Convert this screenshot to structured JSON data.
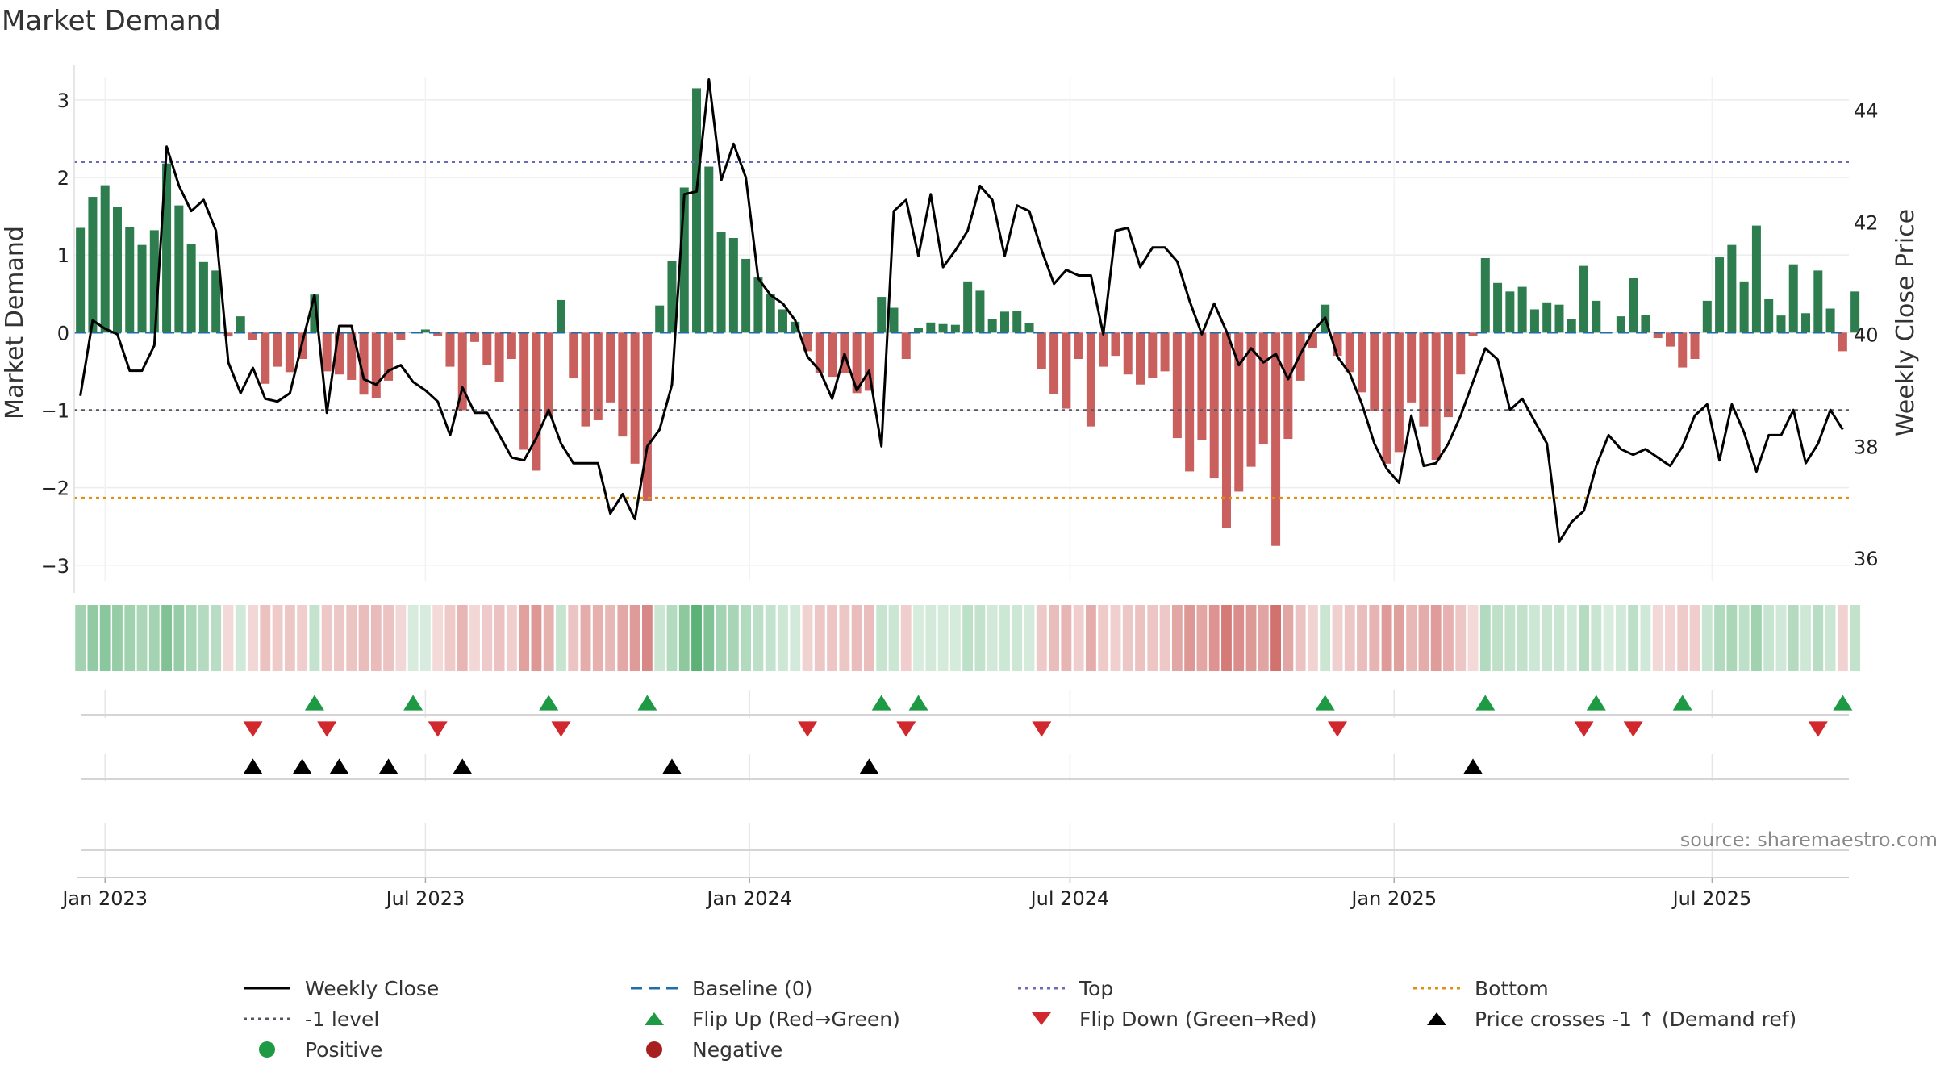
{
  "title": "Market Demand",
  "colors": {
    "positive": "#2e7d4f",
    "negative": "#c9605e",
    "price": "#000000",
    "baseline": "#1f6ea8",
    "top": "#6b6bb5",
    "bottom": "#e0900f",
    "level": "#555566",
    "flip_up": "#1e9a45",
    "flip_down": "#d0282c",
    "cross": "#000000",
    "positive_dot": "#1e9a45",
    "negative_dot": "#a81f1f"
  },
  "chart_data": {
    "type": "bar",
    "title": "Market Demand",
    "ylabel": "Market Demand",
    "y2label": "Weekly Close Price",
    "ylim": [
      -3.2,
      3.3
    ],
    "y2lim": [
      35.6,
      44.6
    ],
    "yticks": [
      3,
      2,
      1,
      0,
      -1,
      -2,
      -3
    ],
    "ytick_labels": [
      "3",
      "2",
      "1",
      "0",
      "−1",
      "−2",
      "−3"
    ],
    "y2ticks": [
      44,
      42,
      40,
      38,
      36
    ],
    "y2tick_labels": [
      "44",
      "42",
      "40",
      "38",
      "36"
    ],
    "xticks": [
      {
        "label": "Jan 2023",
        "week": 2
      },
      {
        "label": "Jul 2023",
        "week": 28
      },
      {
        "label": "Jan 2024",
        "week": 54.3
      },
      {
        "label": "Jul 2024",
        "week": 80.3
      },
      {
        "label": "Jan 2025",
        "week": 106.6
      },
      {
        "label": "Jul 2025",
        "week": 132.4
      }
    ],
    "x_range": [
      -0.5,
      143.5
    ],
    "levels": {
      "top": 2.2,
      "bottom": -2.13,
      "minus_one": -1.0,
      "baseline": 0
    },
    "demand": [
      1.35,
      1.75,
      1.9,
      1.62,
      1.36,
      1.13,
      1.32,
      2.18,
      1.64,
      1.14,
      0.91,
      0.8,
      -0.05,
      0.21,
      -0.1,
      -0.66,
      -0.44,
      -0.51,
      -0.34,
      0.49,
      -0.5,
      -0.54,
      -0.61,
      -0.8,
      -0.84,
      -0.62,
      -0.1,
      0.01,
      0.04,
      -0.04,
      -0.44,
      -1.0,
      -0.12,
      -0.42,
      -0.64,
      -0.34,
      -1.51,
      -1.78,
      -1.08,
      0.42,
      -0.59,
      -1.21,
      -1.13,
      -0.9,
      -1.34,
      -1.69,
      -2.17,
      0.35,
      0.92,
      1.87,
      3.15,
      2.14,
      1.3,
      1.22,
      0.95,
      0.71,
      0.5,
      0.3,
      0.14,
      -0.24,
      -0.52,
      -0.57,
      -0.52,
      -0.78,
      -0.75,
      0.46,
      0.32,
      -0.34,
      0.06,
      0.13,
      0.11,
      0.1,
      0.66,
      0.54,
      0.17,
      0.27,
      0.28,
      0.12,
      -0.47,
      -0.79,
      -0.98,
      -0.34,
      -1.21,
      -0.44,
      -0.3,
      -0.54,
      -0.67,
      -0.58,
      -0.5,
      -1.36,
      -1.79,
      -1.38,
      -1.88,
      -2.52,
      -2.05,
      -1.73,
      -1.44,
      -2.75,
      -1.37,
      -0.62,
      -0.2,
      0.36,
      -0.3,
      -0.51,
      -0.77,
      -1.01,
      -1.69,
      -1.54,
      -0.9,
      -1.21,
      -1.64,
      -1.09,
      -0.54,
      -0.04,
      0.96,
      0.64,
      0.53,
      0.59,
      0.3,
      0.39,
      0.36,
      0.18,
      0.86,
      0.41,
      0.0,
      0.21,
      0.7,
      0.23,
      -0.07,
      -0.18,
      -0.45,
      -0.34,
      0.41,
      0.97,
      1.13,
      0.66,
      1.38,
      0.43,
      0.22,
      0.88,
      0.25,
      0.8,
      0.31,
      -0.24,
      0.53
    ],
    "price": [
      38.9,
      40.25,
      40.1,
      40.0,
      39.35,
      39.35,
      39.8,
      43.35,
      42.65,
      42.2,
      42.4,
      41.85,
      39.5,
      38.95,
      39.4,
      38.85,
      38.8,
      38.95,
      39.85,
      40.7,
      38.6,
      40.15,
      40.15,
      39.2,
      39.1,
      39.35,
      39.45,
      39.15,
      39.0,
      38.8,
      38.2,
      39.05,
      38.6,
      38.6,
      38.2,
      37.8,
      37.75,
      38.15,
      38.65,
      38.05,
      37.7,
      37.7,
      37.7,
      36.8,
      37.15,
      36.7,
      38.0,
      38.3,
      39.1,
      42.5,
      42.55,
      44.55,
      42.75,
      43.4,
      42.8,
      41.0,
      40.7,
      40.55,
      40.25,
      39.6,
      39.35,
      38.85,
      39.65,
      39.0,
      39.35,
      38.0,
      42.2,
      42.4,
      41.4,
      42.5,
      41.2,
      41.5,
      41.85,
      42.65,
      42.4,
      41.4,
      42.3,
      42.2,
      41.5,
      40.9,
      41.15,
      41.05,
      41.05,
      40.0,
      41.85,
      41.9,
      41.2,
      41.55,
      41.55,
      41.3,
      40.6,
      40.0,
      40.55,
      40.05,
      39.45,
      39.75,
      39.5,
      39.65,
      39.2,
      39.65,
      40.05,
      40.3,
      39.6,
      39.3,
      38.75,
      38.05,
      37.6,
      37.35,
      38.55,
      37.65,
      37.7,
      38.05,
      38.55,
      39.15,
      39.75,
      39.55,
      38.65,
      38.85,
      38.45,
      38.05,
      36.3,
      36.65,
      36.85,
      37.65,
      38.2,
      37.95,
      37.85,
      37.95,
      37.8,
      37.65,
      38.0,
      38.55,
      38.75,
      37.75,
      38.75,
      38.25,
      37.55,
      38.2,
      38.2,
      38.65,
      37.7,
      38.05,
      38.65,
      38.3
    ],
    "flip_up_weeks": [
      19,
      27,
      38,
      46,
      65,
      68,
      101,
      114,
      123,
      130,
      143
    ],
    "flip_down_weeks": [
      14,
      20,
      29,
      39,
      59,
      67,
      78,
      102,
      122,
      126,
      141
    ],
    "price_cross_weeks": [
      14,
      18,
      21,
      25,
      31,
      48,
      64,
      113
    ]
  },
  "source": "source: sharemaestro.com",
  "legend": [
    {
      "label": "Weekly Close",
      "marker": "line-solid",
      "color_key": "price"
    },
    {
      "label": "Baseline (0)",
      "marker": "line-dashed",
      "color_key": "baseline"
    },
    {
      "label": "Top",
      "marker": "line-dotted",
      "color_key": "top"
    },
    {
      "label": "Bottom",
      "marker": "line-dotted",
      "color_key": "bottom"
    },
    {
      "label": "-1 level",
      "marker": "line-dotted",
      "color_key": "level"
    },
    {
      "label": "Flip Up (Red→Green)",
      "marker": "triangle-up",
      "color_key": "flip_up"
    },
    {
      "label": "Flip Down (Green→Red)",
      "marker": "triangle-down",
      "color_key": "flip_down"
    },
    {
      "label": "Price crosses -1 ↑ (Demand ref)",
      "marker": "triangle-up",
      "color_key": "cross"
    },
    {
      "label": "Positive",
      "marker": "circle",
      "color_key": "positive_dot"
    },
    {
      "label": "Negative",
      "marker": "circle",
      "color_key": "negative_dot"
    }
  ]
}
